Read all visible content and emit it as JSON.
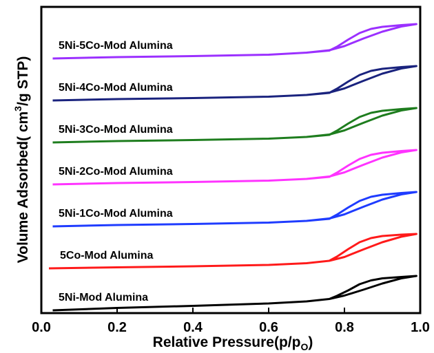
{
  "chart_data": {
    "type": "line",
    "xlabel": "Relative Pressure(p/p",
    "xlabel_sub": "O",
    "xlabel_end": ")",
    "ylabel": "Volume Adsorbed( cm",
    "ylabel_sup": "3",
    "ylabel_end": "/g STP)",
    "xlim": [
      0.0,
      1.0
    ],
    "x_ticks": [
      "0.0",
      "0.2",
      "0.4",
      "0.6",
      "0.8",
      "1.0"
    ],
    "y_ticks_labeled": false,
    "grid": false,
    "series": [
      {
        "name": "5Ni-5Co-Mod Alumina",
        "color": "#9b30ff",
        "offset": 6.0,
        "adsorption": [
          [
            0.03,
            0.0
          ],
          [
            0.2,
            0.04
          ],
          [
            0.4,
            0.07
          ],
          [
            0.6,
            0.11
          ],
          [
            0.7,
            0.17
          ],
          [
            0.76,
            0.24
          ],
          [
            0.8,
            0.36
          ],
          [
            0.85,
            0.58
          ],
          [
            0.9,
            0.78
          ],
          [
            0.95,
            0.93
          ],
          [
            0.99,
            1.0
          ]
        ],
        "desorption": [
          [
            0.99,
            1.0
          ],
          [
            0.95,
            0.97
          ],
          [
            0.9,
            0.92
          ],
          [
            0.87,
            0.86
          ],
          [
            0.84,
            0.74
          ],
          [
            0.81,
            0.55
          ],
          [
            0.78,
            0.34
          ],
          [
            0.76,
            0.23
          ],
          [
            0.7,
            0.17
          ]
        ]
      },
      {
        "name": "5Ni-4Co-Mod Alumina",
        "color": "#1a237e",
        "offset": 5.0,
        "adsorption": [
          [
            0.03,
            0.0
          ],
          [
            0.2,
            0.04
          ],
          [
            0.4,
            0.07
          ],
          [
            0.6,
            0.11
          ],
          [
            0.7,
            0.16
          ],
          [
            0.76,
            0.23
          ],
          [
            0.8,
            0.35
          ],
          [
            0.85,
            0.57
          ],
          [
            0.9,
            0.78
          ],
          [
            0.95,
            0.93
          ],
          [
            0.99,
            1.0
          ]
        ],
        "desorption": [
          [
            0.99,
            1.0
          ],
          [
            0.95,
            0.97
          ],
          [
            0.9,
            0.92
          ],
          [
            0.87,
            0.86
          ],
          [
            0.84,
            0.74
          ],
          [
            0.81,
            0.55
          ],
          [
            0.78,
            0.34
          ],
          [
            0.76,
            0.22
          ],
          [
            0.7,
            0.16
          ]
        ]
      },
      {
        "name": "5Ni-3Co-Mod Alumina",
        "color": "#1e7d1e",
        "offset": 4.0,
        "adsorption": [
          [
            0.03,
            0.0
          ],
          [
            0.2,
            0.04
          ],
          [
            0.4,
            0.07
          ],
          [
            0.6,
            0.11
          ],
          [
            0.7,
            0.16
          ],
          [
            0.76,
            0.23
          ],
          [
            0.8,
            0.35
          ],
          [
            0.85,
            0.57
          ],
          [
            0.9,
            0.78
          ],
          [
            0.95,
            0.93
          ],
          [
            0.99,
            1.0
          ]
        ],
        "desorption": [
          [
            0.99,
            1.0
          ],
          [
            0.95,
            0.97
          ],
          [
            0.9,
            0.92
          ],
          [
            0.87,
            0.86
          ],
          [
            0.84,
            0.74
          ],
          [
            0.81,
            0.55
          ],
          [
            0.78,
            0.34
          ],
          [
            0.76,
            0.22
          ],
          [
            0.7,
            0.16
          ]
        ]
      },
      {
        "name": "5Ni-2Co-Mod Alumina",
        "color": "#ff33ff",
        "offset": 3.0,
        "adsorption": [
          [
            0.03,
            0.0
          ],
          [
            0.2,
            0.04
          ],
          [
            0.4,
            0.07
          ],
          [
            0.6,
            0.11
          ],
          [
            0.7,
            0.16
          ],
          [
            0.76,
            0.23
          ],
          [
            0.8,
            0.35
          ],
          [
            0.85,
            0.57
          ],
          [
            0.9,
            0.78
          ],
          [
            0.95,
            0.93
          ],
          [
            0.99,
            1.0
          ]
        ],
        "desorption": [
          [
            0.99,
            1.0
          ],
          [
            0.95,
            0.97
          ],
          [
            0.9,
            0.92
          ],
          [
            0.87,
            0.86
          ],
          [
            0.84,
            0.74
          ],
          [
            0.81,
            0.55
          ],
          [
            0.78,
            0.34
          ],
          [
            0.76,
            0.22
          ],
          [
            0.7,
            0.16
          ]
        ]
      },
      {
        "name": "5Ni-1Co-Mod Alumina",
        "color": "#1f3cff",
        "offset": 2.0,
        "adsorption": [
          [
            0.03,
            0.0
          ],
          [
            0.2,
            0.04
          ],
          [
            0.4,
            0.07
          ],
          [
            0.6,
            0.11
          ],
          [
            0.7,
            0.16
          ],
          [
            0.76,
            0.23
          ],
          [
            0.8,
            0.35
          ],
          [
            0.85,
            0.57
          ],
          [
            0.9,
            0.78
          ],
          [
            0.95,
            0.93
          ],
          [
            0.99,
            1.0
          ]
        ],
        "desorption": [
          [
            0.99,
            1.0
          ],
          [
            0.95,
            0.97
          ],
          [
            0.9,
            0.92
          ],
          [
            0.87,
            0.86
          ],
          [
            0.84,
            0.74
          ],
          [
            0.81,
            0.55
          ],
          [
            0.78,
            0.34
          ],
          [
            0.76,
            0.22
          ],
          [
            0.7,
            0.16
          ]
        ]
      },
      {
        "name": "5Co-Mod Alumina",
        "color": "#ff1a1a",
        "offset": 1.0,
        "adsorption": [
          [
            0.02,
            0.0
          ],
          [
            0.2,
            0.03
          ],
          [
            0.4,
            0.06
          ],
          [
            0.6,
            0.1
          ],
          [
            0.7,
            0.15
          ],
          [
            0.76,
            0.22
          ],
          [
            0.8,
            0.33
          ],
          [
            0.85,
            0.55
          ],
          [
            0.9,
            0.76
          ],
          [
            0.95,
            0.92
          ],
          [
            0.99,
            1.0
          ]
        ],
        "desorption": [
          [
            0.99,
            1.0
          ],
          [
            0.95,
            0.98
          ],
          [
            0.9,
            0.94
          ],
          [
            0.87,
            0.88
          ],
          [
            0.84,
            0.76
          ],
          [
            0.81,
            0.56
          ],
          [
            0.78,
            0.34
          ],
          [
            0.76,
            0.22
          ],
          [
            0.7,
            0.15
          ]
        ]
      },
      {
        "name": "5Ni-Mod Alumina",
        "color": "#000000",
        "offset": 0.0,
        "adsorption": [
          [
            0.03,
            0.0
          ],
          [
            0.2,
            0.07
          ],
          [
            0.4,
            0.13
          ],
          [
            0.6,
            0.2
          ],
          [
            0.7,
            0.26
          ],
          [
            0.76,
            0.33
          ],
          [
            0.8,
            0.43
          ],
          [
            0.85,
            0.6
          ],
          [
            0.9,
            0.78
          ],
          [
            0.95,
            0.93
          ],
          [
            0.99,
            1.0
          ]
        ],
        "desorption": [
          [
            0.99,
            1.0
          ],
          [
            0.95,
            0.97
          ],
          [
            0.9,
            0.93
          ],
          [
            0.87,
            0.87
          ],
          [
            0.84,
            0.76
          ],
          [
            0.81,
            0.58
          ],
          [
            0.78,
            0.42
          ],
          [
            0.76,
            0.33
          ],
          [
            0.7,
            0.26
          ]
        ]
      }
    ]
  }
}
